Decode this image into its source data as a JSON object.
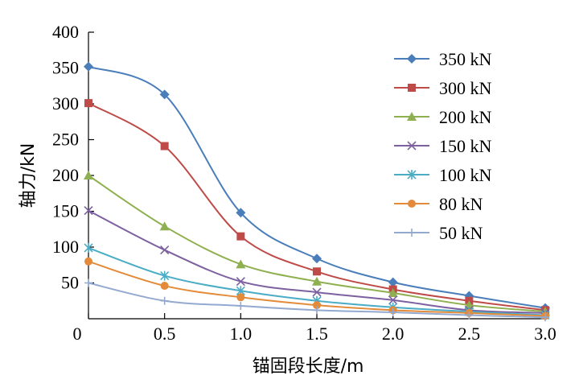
{
  "chart_data": {
    "type": "line",
    "title": "",
    "xlabel": "锚固段长度/m",
    "ylabel": "轴力/kN",
    "xlim": [
      0,
      3.0
    ],
    "ylim": [
      0,
      400
    ],
    "xticks": [
      0,
      0.5,
      1.0,
      1.5,
      2.0,
      2.5,
      3.0
    ],
    "xtick_labels": [
      "0",
      "0.5",
      "1.0",
      "1.5",
      "2.0",
      "2.5",
      "3.0"
    ],
    "yticks": [
      50,
      100,
      150,
      200,
      250,
      300,
      350,
      400
    ],
    "ytick_labels": [
      "50",
      "100",
      "150",
      "200",
      "250",
      "300",
      "350",
      "400"
    ],
    "grid": false,
    "legend_position": "top-right",
    "x": [
      0,
      0.5,
      1.0,
      1.5,
      2.0,
      2.5,
      3.0
    ],
    "series": [
      {
        "name": "350 kN",
        "color": "#4A7EBB",
        "marker": "diamond",
        "values": [
          352,
          313,
          148,
          84,
          51,
          32,
          15
        ]
      },
      {
        "name": "300 kN",
        "color": "#BE4B48",
        "marker": "square",
        "values": [
          301,
          241,
          115,
          66,
          41,
          25,
          12
        ]
      },
      {
        "name": "200 kN",
        "color": "#8FB050",
        "marker": "triangle",
        "values": [
          200,
          129,
          76,
          52,
          36,
          19,
          10
        ]
      },
      {
        "name": "150 kN",
        "color": "#7D60A0",
        "marker": "x",
        "values": [
          151,
          96,
          52,
          37,
          26,
          12,
          8
        ]
      },
      {
        "name": "100 kN",
        "color": "#4BACC6",
        "marker": "asterisk",
        "values": [
          99,
          60,
          39,
          25,
          16,
          10,
          5
        ]
      },
      {
        "name": "80 kN",
        "color": "#E38B3A",
        "marker": "circle",
        "values": [
          80,
          46,
          30,
          19,
          12,
          8,
          4
        ]
      },
      {
        "name": "50 kN",
        "color": "#93A9CF",
        "marker": "plus",
        "values": [
          50,
          25,
          18,
          12,
          9,
          5,
          2
        ]
      }
    ]
  }
}
